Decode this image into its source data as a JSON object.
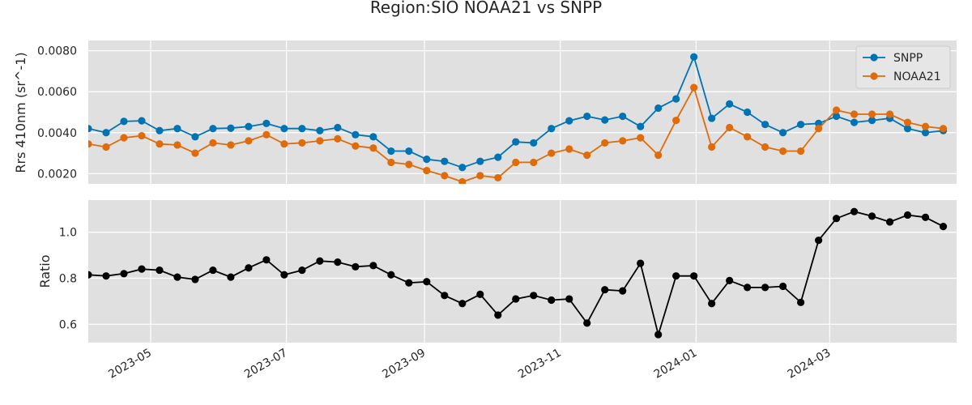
{
  "figure": {
    "title": "Region:SIO NOAA21 vs SNPP"
  },
  "chart_data": [
    {
      "type": "line",
      "ylabel": "Rrs 410nm (sr^-1)",
      "xlabel": "",
      "xlim": [
        "2023-04-03",
        "2024-04-27"
      ],
      "ylim": [
        0.0015,
        0.0085
      ],
      "yticks": [
        0.002,
        0.004,
        0.006,
        0.008
      ],
      "ytick_labels": [
        "0.0020",
        "0.0040",
        "0.0060",
        "0.0080"
      ],
      "grid": true,
      "legend_position": "top-right",
      "x": [
        "2023-04-03",
        "2023-04-11",
        "2023-04-19",
        "2023-04-27",
        "2023-05-05",
        "2023-05-13",
        "2023-05-21",
        "2023-05-29",
        "2023-06-06",
        "2023-06-14",
        "2023-06-22",
        "2023-06-30",
        "2023-07-08",
        "2023-07-16",
        "2023-07-24",
        "2023-08-01",
        "2023-08-09",
        "2023-08-17",
        "2023-08-25",
        "2023-09-02",
        "2023-09-10",
        "2023-09-18",
        "2023-09-26",
        "2023-10-04",
        "2023-10-12",
        "2023-10-20",
        "2023-10-28",
        "2023-11-05",
        "2023-11-13",
        "2023-11-21",
        "2023-11-29",
        "2023-12-07",
        "2023-12-15",
        "2023-12-23",
        "2023-12-31",
        "2024-01-08",
        "2024-01-16",
        "2024-01-24",
        "2024-02-01",
        "2024-02-09",
        "2024-02-17",
        "2024-02-25",
        "2024-03-04",
        "2024-03-12",
        "2024-03-20",
        "2024-03-28",
        "2024-04-05",
        "2024-04-13",
        "2024-04-21"
      ],
      "series": [
        {
          "name": "SNPP",
          "color": "#0173b2",
          "values": [
            0.0042,
            0.004,
            0.00455,
            0.00458,
            0.0041,
            0.0042,
            0.0038,
            0.0042,
            0.00422,
            0.0043,
            0.00445,
            0.0042,
            0.0042,
            0.0041,
            0.00425,
            0.0039,
            0.0038,
            0.0031,
            0.0031,
            0.0027,
            0.0026,
            0.0023,
            0.0026,
            0.0028,
            0.00355,
            0.0035,
            0.0042,
            0.00458,
            0.0048,
            0.00462,
            0.0048,
            0.0043,
            0.0052,
            0.00565,
            0.0077,
            0.0047,
            0.0054,
            0.005,
            0.0044,
            0.004,
            0.0044,
            0.00445,
            0.0048,
            0.0045,
            0.0046,
            0.0047,
            0.0042,
            0.004,
            0.0041
          ]
        },
        {
          "name": "NOAA21",
          "color": "#de6c0c",
          "values": [
            0.00345,
            0.0033,
            0.00375,
            0.00385,
            0.00345,
            0.0034,
            0.003,
            0.0035,
            0.0034,
            0.0036,
            0.0039,
            0.00345,
            0.0035,
            0.0036,
            0.0037,
            0.00335,
            0.00325,
            0.00255,
            0.00245,
            0.00215,
            0.0019,
            0.0016,
            0.0019,
            0.0018,
            0.00255,
            0.00255,
            0.003,
            0.0032,
            0.0029,
            0.0035,
            0.0036,
            0.00375,
            0.0029,
            0.0046,
            0.0062,
            0.0033,
            0.00425,
            0.0038,
            0.0033,
            0.0031,
            0.0031,
            0.0042,
            0.0051,
            0.0049,
            0.0049,
            0.0049,
            0.0045,
            0.0043,
            0.0042
          ]
        }
      ]
    },
    {
      "type": "line",
      "ylabel": "Ratio",
      "xlabel": "",
      "xlim": [
        "2023-04-03",
        "2024-04-27"
      ],
      "ylim": [
        0.52,
        1.14
      ],
      "yticks": [
        0.6,
        0.8,
        1.0
      ],
      "ytick_labels": [
        "0.6",
        "0.8",
        "1.0"
      ],
      "xticks": [
        "2023-05-01",
        "2023-07-01",
        "2023-09-01",
        "2023-11-01",
        "2024-01-01",
        "2024-03-01"
      ],
      "xtick_labels": [
        "2023-05",
        "2023-07",
        "2023-09",
        "2023-11",
        "2024-01",
        "2024-03"
      ],
      "grid": true,
      "x": [
        "2023-04-03",
        "2023-04-11",
        "2023-04-19",
        "2023-04-27",
        "2023-05-05",
        "2023-05-13",
        "2023-05-21",
        "2023-05-29",
        "2023-06-06",
        "2023-06-14",
        "2023-06-22",
        "2023-06-30",
        "2023-07-08",
        "2023-07-16",
        "2023-07-24",
        "2023-08-01",
        "2023-08-09",
        "2023-08-17",
        "2023-08-25",
        "2023-09-02",
        "2023-09-10",
        "2023-09-18",
        "2023-09-26",
        "2023-10-04",
        "2023-10-12",
        "2023-10-20",
        "2023-10-28",
        "2023-11-05",
        "2023-11-13",
        "2023-11-21",
        "2023-11-29",
        "2023-12-07",
        "2023-12-15",
        "2023-12-23",
        "2023-12-31",
        "2024-01-08",
        "2024-01-16",
        "2024-01-24",
        "2024-02-01",
        "2024-02-09",
        "2024-02-17",
        "2024-02-25",
        "2024-03-04",
        "2024-03-12",
        "2024-03-20",
        "2024-03-28",
        "2024-04-05",
        "2024-04-13",
        "2024-04-21"
      ],
      "series": [
        {
          "color": "#000000",
          "values": [
            0.815,
            0.81,
            0.82,
            0.84,
            0.835,
            0.805,
            0.795,
            0.835,
            0.805,
            0.845,
            0.88,
            0.815,
            0.835,
            0.875,
            0.87,
            0.85,
            0.855,
            0.815,
            0.78,
            0.785,
            0.725,
            0.69,
            0.73,
            0.64,
            0.71,
            0.725,
            0.705,
            0.71,
            0.605,
            0.75,
            0.745,
            0.865,
            0.555,
            0.81,
            0.81,
            0.69,
            0.79,
            0.76,
            0.76,
            0.765,
            0.695,
            0.965,
            1.06,
            1.09,
            1.07,
            1.045,
            1.075,
            1.065,
            1.025
          ]
        }
      ]
    }
  ]
}
